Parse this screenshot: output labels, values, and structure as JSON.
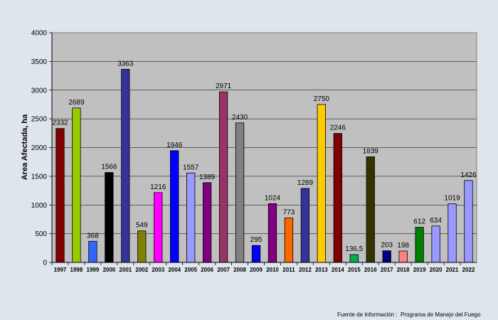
{
  "chart_data": {
    "type": "bar",
    "ylabel": "Area Afectada, ha",
    "xlabel": "",
    "ylim": [
      0,
      4000
    ],
    "yticks": [
      0,
      500,
      1000,
      1500,
      2000,
      2500,
      3000,
      3500,
      4000
    ],
    "grid": true,
    "legend": "none",
    "categories": [
      "1997",
      "1998",
      "1999",
      "2000",
      "2001",
      "2002",
      "2003",
      "2004",
      "2005",
      "2006",
      "2007",
      "2008",
      "2009",
      "2010",
      "2011",
      "2012",
      "2013",
      "2014",
      "2015",
      "2016",
      "2017",
      "2018",
      "2019",
      "2020",
      "2021",
      "2022"
    ],
    "values": [
      2332,
      2689,
      368,
      1566,
      3363,
      549,
      1216,
      1946,
      1557,
      1389,
      2971,
      2430,
      295,
      1024,
      773,
      1289,
      2750,
      2246,
      136.5,
      1839,
      203,
      198,
      612,
      634,
      1019,
      1426
    ],
    "data_labels": [
      "2332",
      "2689",
      "368",
      "1566",
      "3363",
      "549",
      "1216",
      "1946",
      "1557",
      "1389",
      "2971",
      "2430",
      "295",
      "1024",
      "773",
      "1289",
      "2750",
      "2246",
      "136,5",
      "1839",
      "203",
      "198",
      "612",
      "634",
      "1019",
      "1426"
    ],
    "colors": [
      "#800000",
      "#99cc00",
      "#3366ff",
      "#000000",
      "#333399",
      "#808000",
      "#ff00ff",
      "#0000ff",
      "#9999ff",
      "#800080",
      "#993366",
      "#808080",
      "#0000ff",
      "#800080",
      "#ff6600",
      "#333399",
      "#ffcc00",
      "#800000",
      "#00b050",
      "#333300",
      "#000080",
      "#ff8080",
      "#008000",
      "#9999ff",
      "#9999ff",
      "#9999ff"
    ]
  },
  "source_note": "Fuente de Información :  Programa de Manejo del Fuego"
}
